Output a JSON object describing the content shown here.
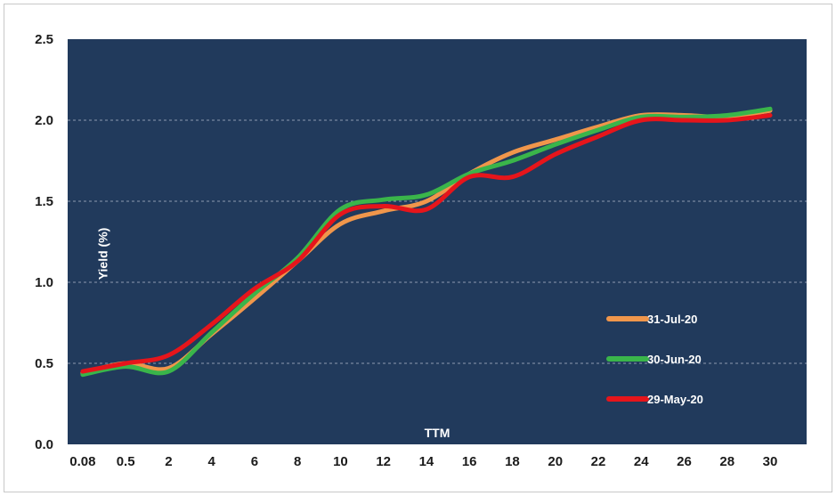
{
  "chart_data": {
    "type": "line",
    "title": "",
    "xlabel": "TTM",
    "ylabel": "Yield (%)",
    "x": [
      "0.08",
      "0.5",
      "2",
      "4",
      "6",
      "8",
      "10",
      "12",
      "14",
      "16",
      "18",
      "20",
      "22",
      "24",
      "26",
      "28",
      "30"
    ],
    "ylim": [
      0.0,
      2.5
    ],
    "y_ticks": [
      "0.0",
      "0.5",
      "1.0",
      "1.5",
      "2.0",
      "2.5"
    ],
    "grid": "horizontal dashed",
    "legend_position": "right, inside plot area",
    "background_color": "#213a5c",
    "series": [
      {
        "name": "31-Jul-20",
        "color": "#f0964b",
        "values": [
          0.44,
          0.5,
          0.47,
          0.68,
          0.9,
          1.13,
          1.36,
          1.44,
          1.5,
          1.67,
          1.8,
          1.88,
          1.96,
          2.03,
          2.03,
          2.02,
          2.06
        ]
      },
      {
        "name": "30-Jun-20",
        "color": "#3ab54a",
        "values": [
          0.43,
          0.48,
          0.45,
          0.69,
          0.93,
          1.15,
          1.45,
          1.51,
          1.54,
          1.67,
          1.75,
          1.85,
          1.94,
          2.02,
          2.02,
          2.03,
          2.07
        ]
      },
      {
        "name": "29-May-20",
        "color": "#e6151b",
        "values": [
          0.45,
          0.5,
          0.55,
          0.74,
          0.96,
          1.13,
          1.42,
          1.47,
          1.45,
          1.65,
          1.65,
          1.79,
          1.9,
          2.0,
          2.0,
          2.0,
          2.03
        ]
      }
    ]
  }
}
